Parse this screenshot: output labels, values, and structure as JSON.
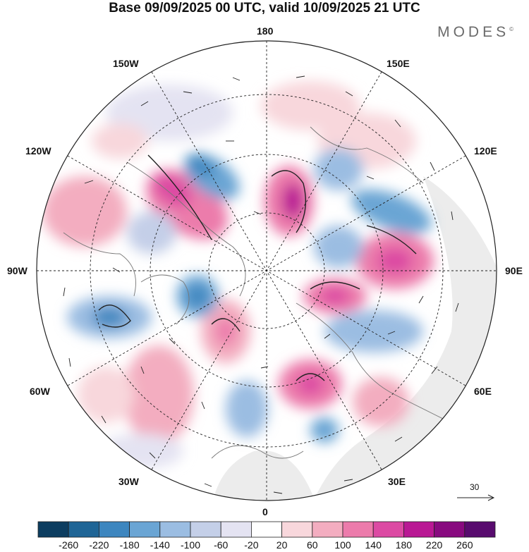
{
  "title": "Base 09/09/2025 00 UTC, valid 10/09/2025 21 UTC",
  "brand": "MODES",
  "brand_mark": "©",
  "longitude_labels": {
    "top": "180",
    "bottom": "0",
    "left": "90W",
    "right": "90E",
    "upper_left_1": "150W",
    "upper_left_2": "120W",
    "upper_right_1": "150E",
    "upper_right_2": "120E",
    "lower_left_1": "60W",
    "lower_left_2": "30W",
    "lower_right_1": "60E",
    "lower_right_2": "30E"
  },
  "reference_vector": {
    "label": "30"
  },
  "colorbar": {
    "ticks": [
      "-260",
      "-220",
      "-180",
      "-140",
      "-100",
      "-60",
      "-20",
      "20",
      "60",
      "100",
      "140",
      "180",
      "220",
      "260"
    ],
    "colors": [
      "#0c3d60",
      "#1f6596",
      "#3d86bf",
      "#6aa5d4",
      "#9bbde2",
      "#c4cfe8",
      "#e4e3f2",
      "#ffffff",
      "#f8d7dc",
      "#f3adc0",
      "#ec7bab",
      "#dc4aa3",
      "#b91894",
      "#880a7f",
      "#580b6e"
    ]
  },
  "colors": {
    "land_gray": "#ececec",
    "coast": "#777777",
    "grid": "#222222"
  }
}
